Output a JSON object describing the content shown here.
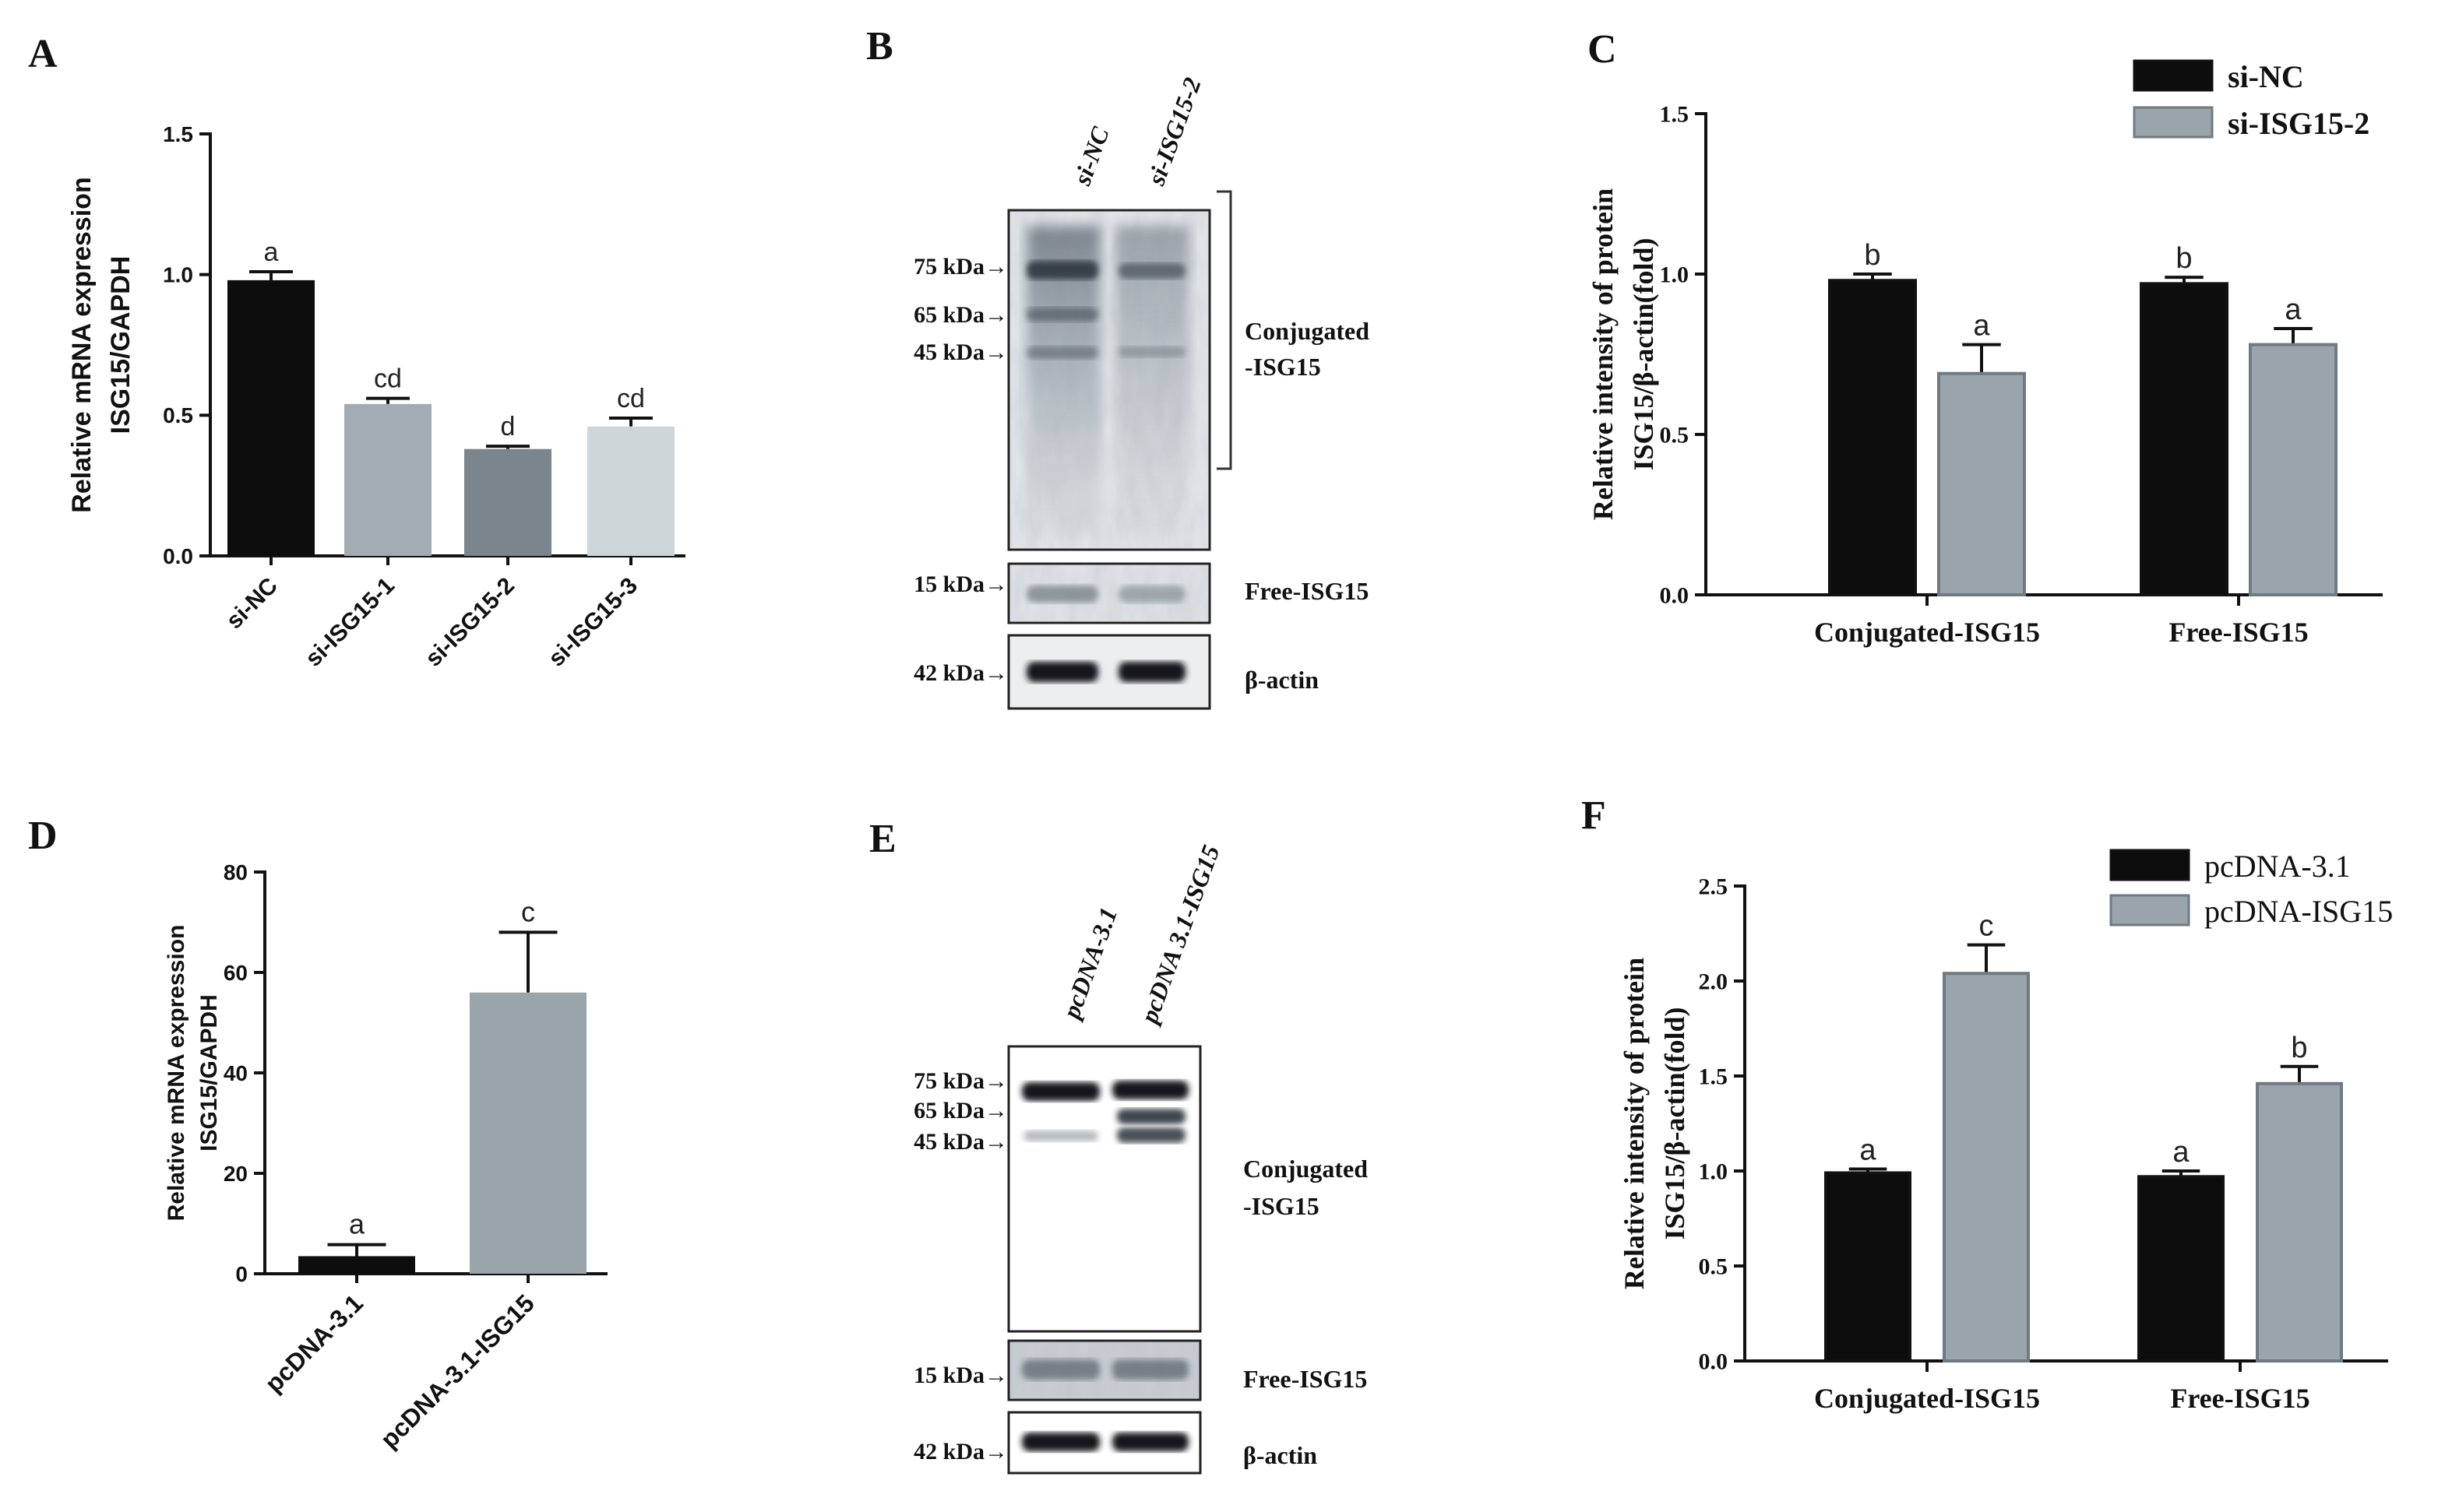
{
  "colors": {
    "black_bar": "#0d0d0d",
    "grey_bar": "#9aa4ab",
    "si1_bar": "#a3acb4",
    "si2_bar": "#7b858d",
    "si3_bar": "#cfd6da"
  },
  "panels": {
    "A": {
      "letter": "A"
    },
    "B": {
      "letter": "B",
      "lanes": [
        "si-NC",
        "si-ISG15-2"
      ],
      "markers": [
        "75 kDa→",
        "65 kDa→",
        "45 kDa→",
        "15 kDa→",
        "42 kDa→"
      ],
      "labels": [
        "Conjugated",
        "-ISG15",
        "Free-ISG15",
        "β-actin"
      ]
    },
    "C": {
      "letter": "C"
    },
    "D": {
      "letter": "D"
    },
    "E": {
      "letter": "E",
      "lanes": [
        "pcDNA-3.1",
        "pcDNA 3.1-ISG15"
      ],
      "markers": [
        "75 kDa→",
        "65 kDa→",
        "45 kDa→",
        "15 kDa→",
        "42 kDa→"
      ],
      "labels": [
        "Conjugated",
        "-ISG15",
        "Free-ISG15",
        "β-actin"
      ]
    },
    "F": {
      "letter": "F"
    }
  },
  "chart_data": [
    {
      "id": "A",
      "type": "bar",
      "ylabel": [
        "Relative mRNA expression",
        "ISG15/GAPDH"
      ],
      "ylim": [
        0,
        1.5
      ],
      "yticks": [
        "0.0",
        "0.5",
        "1.0",
        "1.5"
      ],
      "categories": [
        "si-NC",
        "si-ISG15-1",
        "si-ISG15-2",
        "si-ISG15-3"
      ],
      "values": [
        0.98,
        0.54,
        0.38,
        0.46
      ],
      "errors": [
        0.03,
        0.02,
        0.01,
        0.03
      ],
      "letters": [
        "a",
        "cd",
        "d",
        "cd"
      ]
    },
    {
      "id": "C",
      "type": "bar",
      "ylabel": [
        "Relative intensity of protein",
        "ISG15/β-actin(fold)"
      ],
      "ylim": [
        0,
        1.5
      ],
      "yticks": [
        "0.0",
        "0.5",
        "1.0",
        "1.5"
      ],
      "categories": [
        "Conjugated-ISG15",
        "Free-ISG15"
      ],
      "series": [
        {
          "name": "si-NC",
          "values": [
            0.98,
            0.97
          ],
          "errors": [
            0.02,
            0.02
          ],
          "letters": [
            "b",
            "b"
          ]
        },
        {
          "name": "si-ISG15-2",
          "values": [
            0.69,
            0.78
          ],
          "errors": [
            0.09,
            0.05
          ],
          "letters": [
            "a",
            "a"
          ]
        }
      ]
    },
    {
      "id": "D",
      "type": "bar",
      "ylabel": [
        "Relative mRNA expression",
        "ISG15/GAPDH"
      ],
      "ylim": [
        0,
        80
      ],
      "yticks": [
        "0",
        "20",
        "40",
        "60",
        "80"
      ],
      "categories": [
        "pcDNA-3.1",
        "pcDNA-3.1-ISG15"
      ],
      "values": [
        3.5,
        56
      ],
      "errors": [
        2.3,
        12
      ],
      "letters": [
        "a",
        "c"
      ]
    },
    {
      "id": "F",
      "type": "bar",
      "ylabel": [
        "Relative intensity of protein",
        "ISG15/β-actin(fold)"
      ],
      "ylim": [
        0,
        2.5
      ],
      "yticks": [
        "0.0",
        "0.5",
        "1.0",
        "1.5",
        "2.0",
        "2.5"
      ],
      "categories": [
        "Conjugated-ISG15",
        "Free-ISG15"
      ],
      "series": [
        {
          "name": "pcDNA-3.1",
          "values": [
            0.99,
            0.97
          ],
          "errors": [
            0.02,
            0.03
          ],
          "letters": [
            "a",
            "a"
          ]
        },
        {
          "name": "pcDNA-ISG15",
          "values": [
            2.04,
            1.46
          ],
          "errors": [
            0.15,
            0.09
          ],
          "letters": [
            "c",
            "b"
          ]
        }
      ]
    }
  ]
}
